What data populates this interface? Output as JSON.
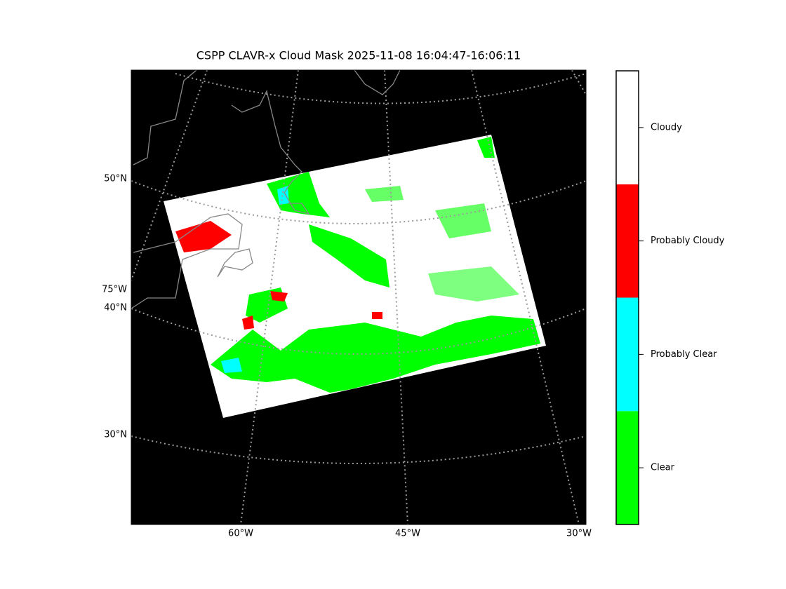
{
  "title": "CSPP CLAVR-x Cloud Mask 2025-11-08 16:04:47-16:06:11",
  "latitude_labels": [
    "50°N",
    "40°N",
    "30°N"
  ],
  "longitude_labels": [
    "75°W",
    "60°W",
    "45°W",
    "30°W"
  ],
  "legend": [
    {
      "label": "Clear",
      "color": "#00ff00"
    },
    {
      "label": "Probably Clear",
      "color": "#00ffff"
    },
    {
      "label": "Probably Cloudy",
      "color": "#ff0000"
    },
    {
      "label": "Cloudy",
      "color": "#ffffff"
    }
  ]
}
